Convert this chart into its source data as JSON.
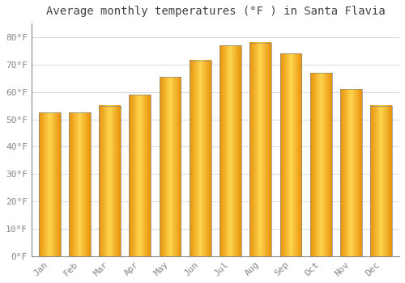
{
  "title": "Average monthly temperatures (°F ) in Santa Flavia",
  "months": [
    "Jan",
    "Feb",
    "Mar",
    "Apr",
    "May",
    "Jun",
    "Jul",
    "Aug",
    "Sep",
    "Oct",
    "Nov",
    "Dec"
  ],
  "values": [
    52.5,
    52.5,
    55.0,
    59.0,
    65.5,
    71.5,
    77.0,
    78.0,
    74.0,
    67.0,
    61.0,
    55.0
  ],
  "bar_color_left": "#E8920A",
  "bar_color_center": "#FFD54F",
  "bar_color_right": "#E8920A",
  "bar_border_color": "#888888",
  "ylim": [
    0,
    85
  ],
  "yticks": [
    0,
    10,
    20,
    30,
    40,
    50,
    60,
    70,
    80
  ],
  "ytick_labels": [
    "0°F",
    "10°F",
    "20°F",
    "30°F",
    "40°F",
    "50°F",
    "60°F",
    "70°F",
    "80°F"
  ],
  "background_color": "#ffffff",
  "plot_bg_color": "#ffffff",
  "grid_color": "#dddddd",
  "title_fontsize": 10,
  "tick_fontsize": 8,
  "bar_width": 0.72
}
